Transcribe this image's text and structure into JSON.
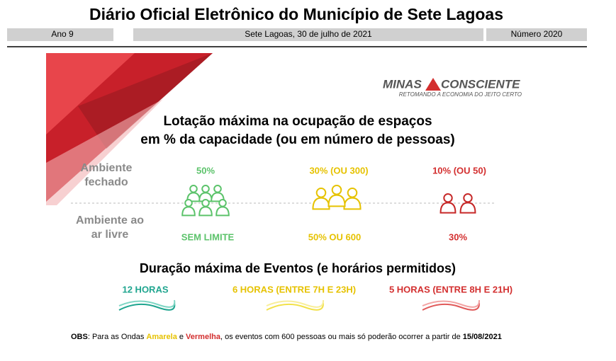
{
  "header": {
    "title": "Diário Oficial Eletrônico do Município de Sete Lagoas",
    "edition": "Ano 9",
    "date": "Sete Lagoas, 30 de julho de 2021",
    "number": "Número 2020"
  },
  "logo": {
    "left": "MINAS",
    "right": "CONSCIENTE",
    "tagline": "RETOMANDO A ECONOMIA DO JEITO CERTO"
  },
  "capacity": {
    "heading": [
      "Lotação máxima na ocupação de espaços",
      "em % da capacidade (ou em número de pessoas)"
    ],
    "rows": [
      [
        "Ambiente",
        "fechado"
      ],
      [
        "Ambiente ao",
        "ar livre"
      ]
    ],
    "columns": [
      {
        "indoor": "50%",
        "outdoor": "SEM LIMITE"
      },
      {
        "indoor": "30% (OU 300)",
        "outdoor": "50% OU 600"
      },
      {
        "indoor": "10% (OU 50)",
        "outdoor": "30%"
      }
    ]
  },
  "events": {
    "heading": "Duração máxima de Eventos (e horários permitidos)",
    "items": [
      "12 HORAS",
      "6 HORAS (ENTRE 7H E 23H)",
      "5 HORAS (ENTRE 8H E 21H)"
    ]
  },
  "obs": [
    "OBS",
    ": Para as Ondas ",
    "Amarela",
    " e ",
    "Vermelha",
    ", os eventos com 600 pessoas ou mais só poderão ocorrer a partir de ",
    "15/08/2021"
  ]
}
